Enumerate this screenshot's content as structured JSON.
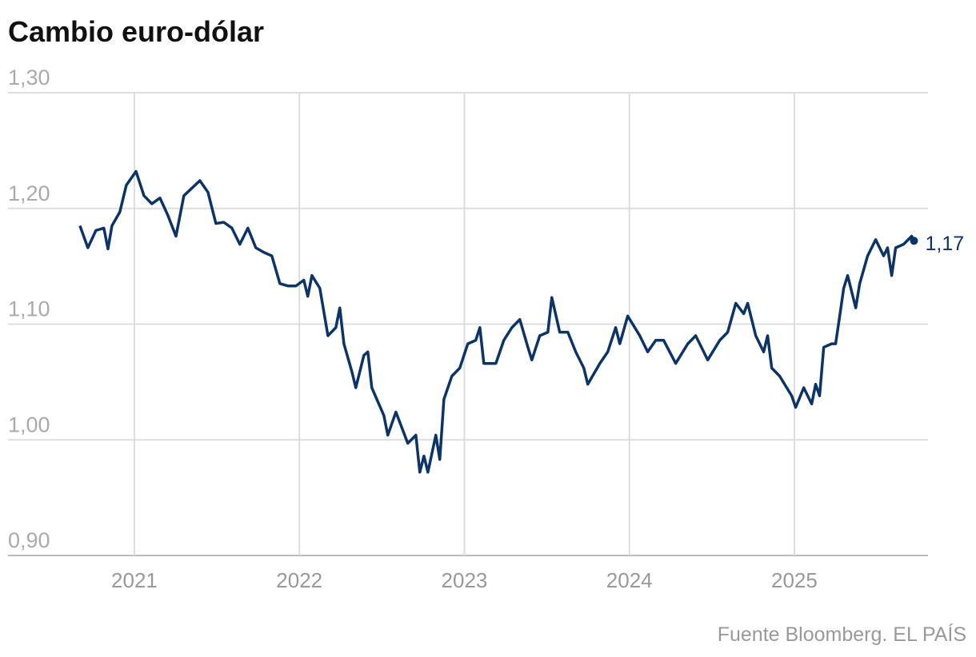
{
  "chart_data": {
    "type": "line",
    "title": "Cambio euro-dólar",
    "source": "Fuente Bloomberg. EL PAÍS",
    "color": "#0c3466",
    "grid": true,
    "xlim": [
      2020.234,
      2025.81
    ],
    "xticks": [
      2021,
      2022,
      2023,
      2024,
      2025
    ],
    "ylim": [
      0.9,
      1.3
    ],
    "yticks": [
      {
        "value": 0.9,
        "label": "0,90"
      },
      {
        "value": 1.0,
        "label": "1,00"
      },
      {
        "value": 1.1,
        "label": "1,10"
      },
      {
        "value": 1.2,
        "label": "1,20"
      },
      {
        "value": 1.3,
        "label": "1,30"
      }
    ],
    "x": [
      2020.67,
      2020.718,
      2020.767,
      2020.815,
      2020.84,
      2020.864,
      2020.912,
      2020.951,
      2021.01,
      2021.058,
      2021.106,
      2021.155,
      2021.203,
      2021.252,
      2021.3,
      2021.397,
      2021.446,
      2021.494,
      2021.542,
      2021.591,
      2021.639,
      2021.688,
      2021.736,
      2021.785,
      2021.833,
      2021.882,
      2021.93,
      2021.979,
      2022.027,
      2022.051,
      2022.076,
      2022.124,
      2022.173,
      2022.221,
      2022.245,
      2022.27,
      2022.318,
      2022.342,
      2022.391,
      2022.415,
      2022.439,
      2022.512,
      2022.536,
      2022.585,
      2022.657,
      2022.706,
      2022.73,
      2022.755,
      2022.779,
      2022.827,
      2022.851,
      2022.876,
      2022.924,
      2022.972,
      2023.021,
      2023.069,
      2023.094,
      2023.118,
      2023.191,
      2023.239,
      2023.288,
      2023.336,
      2023.385,
      2023.409,
      2023.457,
      2023.506,
      2023.53,
      2023.578,
      2023.627,
      2023.675,
      2023.724,
      2023.748,
      2023.821,
      2023.869,
      2023.917,
      2023.942,
      2023.99,
      2024.063,
      2024.111,
      2024.16,
      2024.208,
      2024.281,
      2024.354,
      2024.402,
      2024.475,
      2024.548,
      2024.596,
      2024.645,
      2024.693,
      2024.717,
      2024.766,
      2024.814,
      2024.838,
      2024.863,
      2024.911,
      2024.984,
      2025.008,
      2025.057,
      2025.105,
      2025.129,
      2025.153,
      2025.178,
      2025.226,
      2025.25,
      2025.275,
      2025.299,
      2025.323,
      2025.372,
      2025.396,
      2025.444,
      2025.493,
      2025.541,
      2025.565,
      2025.59,
      2025.614,
      2025.662,
      2025.711,
      2025.725
    ],
    "series": [
      {
        "values": [
          1.185,
          1.166,
          1.181,
          1.183,
          1.165,
          1.185,
          1.197,
          1.22,
          1.232,
          1.211,
          1.204,
          1.209,
          1.194,
          1.176,
          1.211,
          1.224,
          1.214,
          1.187,
          1.188,
          1.183,
          1.169,
          1.183,
          1.166,
          1.162,
          1.159,
          1.135,
          1.133,
          1.133,
          1.138,
          1.124,
          1.142,
          1.131,
          1.09,
          1.097,
          1.114,
          1.083,
          1.059,
          1.045,
          1.073,
          1.076,
          1.045,
          1.021,
          1.004,
          1.024,
          0.997,
          1.004,
          0.972,
          0.986,
          0.972,
          1.004,
          0.983,
          1.035,
          1.055,
          1.062,
          1.083,
          1.086,
          1.097,
          1.066,
          1.066,
          1.086,
          1.097,
          1.104,
          1.08,
          1.069,
          1.09,
          1.093,
          1.123,
          1.093,
          1.093,
          1.076,
          1.062,
          1.048,
          1.066,
          1.076,
          1.097,
          1.083,
          1.107,
          1.09,
          1.076,
          1.086,
          1.086,
          1.066,
          1.083,
          1.09,
          1.069,
          1.086,
          1.093,
          1.118,
          1.109,
          1.118,
          1.09,
          1.076,
          1.09,
          1.062,
          1.055,
          1.038,
          1.028,
          1.045,
          1.031,
          1.048,
          1.038,
          1.08,
          1.083,
          1.083,
          1.107,
          1.131,
          1.142,
          1.114,
          1.135,
          1.159,
          1.173,
          1.159,
          1.166,
          1.142,
          1.166,
          1.169,
          1.176,
          1.172
        ]
      }
    ],
    "annotations": [
      {
        "value": 1.17,
        "label": "1,17"
      }
    ]
  }
}
